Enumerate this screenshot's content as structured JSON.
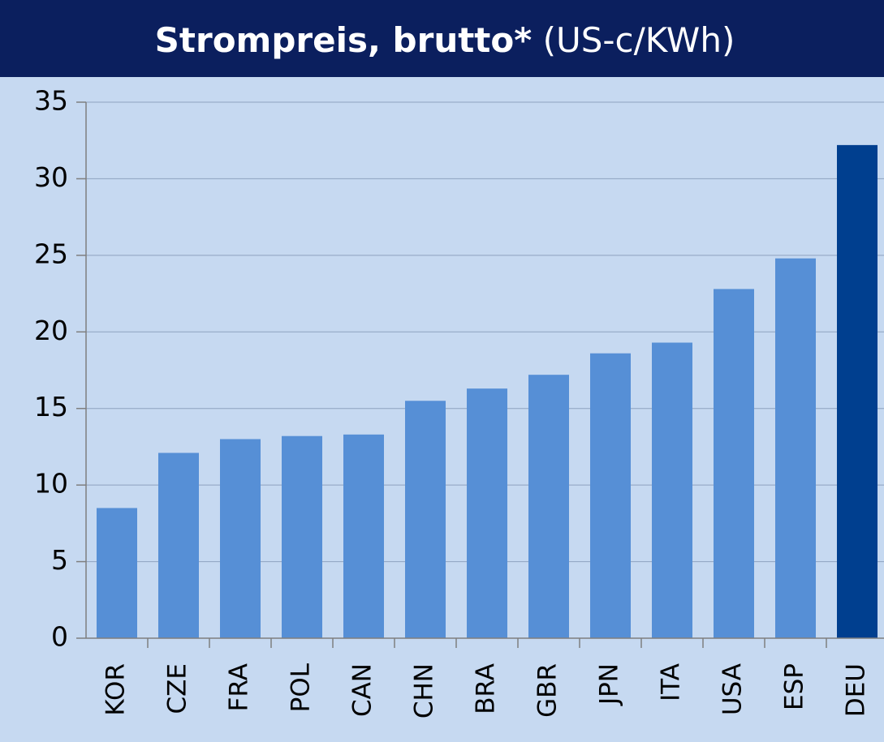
{
  "chart_data": {
    "type": "bar",
    "title": "Strompreis, brutto*",
    "unit": "(US-c/KWh)",
    "categories": [
      "KOR",
      "CZE",
      "FRA",
      "POL",
      "CAN",
      "CHN",
      "BRA",
      "GBR",
      "JPN",
      "ITA",
      "USA",
      "ESP",
      "DEU"
    ],
    "values": [
      8.5,
      12.1,
      13.0,
      13.2,
      13.3,
      15.5,
      16.3,
      17.2,
      18.6,
      19.3,
      22.8,
      24.8,
      32.2
    ],
    "colors": [
      "#568fd6",
      "#568fd6",
      "#568fd6",
      "#568fd6",
      "#568fd6",
      "#568fd6",
      "#568fd6",
      "#568fd6",
      "#568fd6",
      "#568fd6",
      "#568fd6",
      "#568fd6",
      "#003f8f"
    ],
    "ylim": [
      0,
      35
    ],
    "yticks": [
      0,
      5,
      10,
      15,
      20,
      25,
      30,
      35
    ],
    "grid": true
  }
}
